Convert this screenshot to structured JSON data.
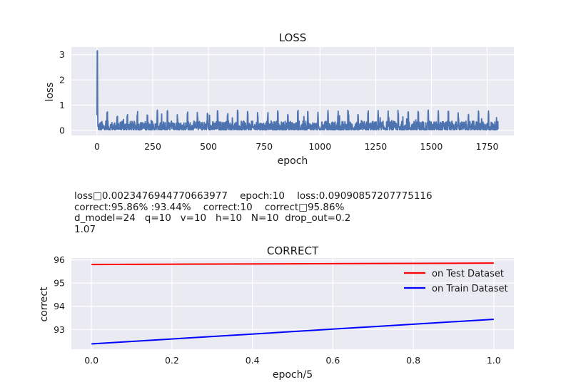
{
  "info_text": {
    "line1": "loss□0.0023476944770663977    epoch:10    loss:0.09090857207775116",
    "line2": "correct:95.86% :93.44%    correct:10    correct□95.86%",
    "line3": "d_model=24   q=10   v=10   h=10   N=10  drop_out=0.2",
    "line4": "1.07"
  },
  "chart_data": [
    {
      "type": "line",
      "title": "LOSS",
      "xlabel": "epoch",
      "ylabel": "loss",
      "xlim": [
        -115,
        1870
      ],
      "ylim": [
        -0.2,
        3.3
      ],
      "xticks": [
        0,
        250,
        500,
        750,
        1000,
        1250,
        1500,
        1750
      ],
      "yticks": [
        0,
        1,
        2,
        3
      ],
      "grid": true,
      "series": [
        {
          "color": "#4c72b0",
          "x_start": 0,
          "x_end": 1799,
          "summary": "spike to ~3.15 at epoch 0, then noisy oscillation mostly between ~0 and ~0.6 with occasional peaks near 0.8"
        }
      ]
    },
    {
      "type": "line",
      "title": "CORRECT",
      "xlabel": "epoch/5",
      "ylabel": "correct",
      "xlim": [
        -0.05,
        1.05
      ],
      "ylim": [
        92.15,
        96.08
      ],
      "xticks": [
        0.0,
        0.2,
        0.4,
        0.6,
        0.8,
        1.0
      ],
      "yticks": [
        93,
        94,
        95,
        96
      ],
      "grid": true,
      "legend_position": "upper-right",
      "series": [
        {
          "name": "on Test Dataset",
          "color": "#ff0000",
          "x": [
            0,
            1
          ],
          "y": [
            95.8,
            95.86
          ]
        },
        {
          "name": "on Train Dataset",
          "color": "#0000ff",
          "x": [
            0,
            1
          ],
          "y": [
            92.38,
            93.44
          ]
        }
      ]
    }
  ]
}
